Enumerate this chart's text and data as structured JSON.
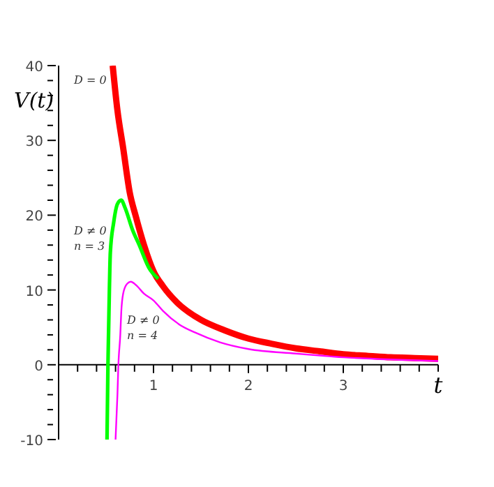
{
  "chart_data": {
    "type": "line",
    "xlabel": "t",
    "ylabel": "V(t)",
    "xlim": [
      0,
      4
    ],
    "ylim": [
      -10,
      40
    ],
    "xticks": [
      {
        "value": 0.2,
        "label": null
      },
      {
        "value": 0.4,
        "label": null
      },
      {
        "value": 0.6,
        "label": null
      },
      {
        "value": 0.8,
        "label": null
      },
      1,
      {
        "value": 1.2,
        "label": null
      },
      {
        "value": 1.4,
        "label": null
      },
      {
        "value": 1.6,
        "label": null
      },
      {
        "value": 1.8,
        "label": null
      },
      2,
      {
        "value": 2.2,
        "label": null
      },
      {
        "value": 2.4,
        "label": null
      },
      {
        "value": 2.6,
        "label": null
      },
      {
        "value": 2.8,
        "label": null
      },
      3,
      {
        "value": 3.2,
        "label": null
      },
      {
        "value": 3.4,
        "label": null
      },
      {
        "value": 3.6,
        "label": null
      },
      {
        "value": 3.8,
        "label": null
      },
      {
        "value": 4,
        "label": null
      }
    ],
    "yticks": [
      -10,
      {
        "value": -8,
        "label": null
      },
      {
        "value": -6,
        "label": null
      },
      {
        "value": -4,
        "label": null
      },
      {
        "value": -2,
        "label": null
      },
      0,
      {
        "value": 2,
        "label": null
      },
      {
        "value": 4,
        "label": null
      },
      {
        "value": 6,
        "label": null
      },
      {
        "value": 8,
        "label": null
      },
      10,
      {
        "value": 12,
        "label": null
      },
      {
        "value": 14,
        "label": null
      },
      {
        "value": 16,
        "label": null
      },
      {
        "value": 18,
        "label": null
      },
      20,
      {
        "value": 22,
        "label": null
      },
      {
        "value": 24,
        "label": null
      },
      {
        "value": 26,
        "label": null
      },
      {
        "value": 28,
        "label": null
      },
      30,
      {
        "value": 32,
        "label": null
      },
      {
        "value": 34,
        "label": null
      },
      {
        "value": 36,
        "label": null
      },
      {
        "value": 38,
        "label": null
      },
      40
    ],
    "grid": false,
    "legend": false,
    "marker": "none",
    "line_style": "solid",
    "series": [
      {
        "name": "D = 0",
        "color": "#ff0000",
        "x": [
          0.57,
          0.62,
          0.68,
          0.75,
          0.81,
          0.9,
          1.0,
          1.1,
          1.25,
          1.5,
          1.75,
          2,
          2.25,
          2.5,
          2.75,
          3,
          3.25,
          3.5,
          3.75,
          4
        ],
        "values": [
          40,
          34,
          29,
          23,
          20,
          16,
          12.5,
          10.5,
          8.3,
          6,
          4.6,
          3.5,
          2.8,
          2.2,
          1.8,
          1.4,
          1.2,
          1.0,
          0.9,
          0.8
        ]
      },
      {
        "name": "D ≠ 0\nn = 3",
        "color": "#00ff00",
        "x": [
          0.51,
          0.52,
          0.535,
          0.545,
          0.58,
          0.62,
          0.66,
          0.7,
          0.78,
          0.85,
          0.95,
          1.05
        ],
        "values": [
          -10,
          0,
          10,
          15,
          19,
          21.5,
          22,
          21,
          18,
          16,
          13,
          11.5
        ]
      },
      {
        "name": "D ≠ 0\nn = 4",
        "color": "#ff00ff",
        "x": [
          0.6,
          0.62,
          0.63,
          0.65,
          0.66,
          0.68,
          0.72,
          0.76,
          0.82,
          0.9,
          1.0,
          1.1,
          1.27,
          1.44,
          1.7,
          2,
          2.5,
          3,
          3.5,
          4
        ],
        "values": [
          -10,
          -4,
          0,
          4,
          7,
          9.5,
          10.8,
          11.1,
          10.6,
          9.5,
          8.6,
          7.2,
          5.4,
          4.3,
          3.0,
          2.1,
          1.5,
          1.0,
          0.7,
          0.5
        ]
      }
    ]
  }
}
